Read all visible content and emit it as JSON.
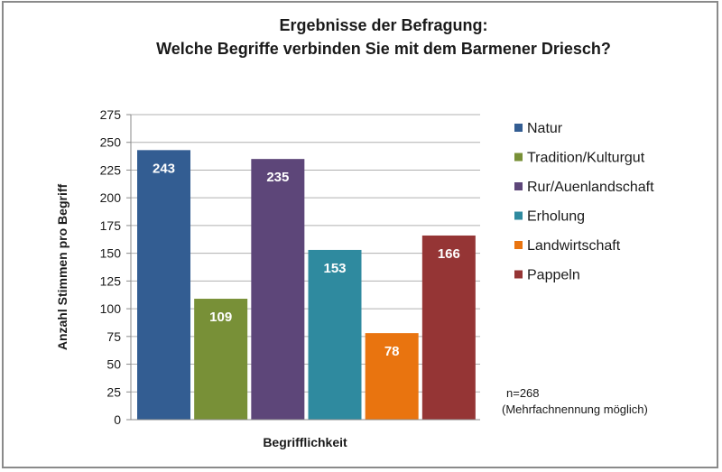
{
  "chart_data": {
    "type": "bar",
    "title": "Ergebnisse der Befragung:",
    "subtitle": "Welche Begriffe verbinden Sie mit dem Barmener Driesch?",
    "xlabel": "Begrifflichkeit",
    "ylabel": "Anzahl Stimmen pro Begriff",
    "ylim": [
      0,
      275
    ],
    "yticks": [
      0,
      25,
      50,
      75,
      100,
      125,
      150,
      175,
      200,
      225,
      250,
      275
    ],
    "grid": true,
    "legend": "right",
    "categories": [
      "Natur",
      "Tradition/Kulturgut",
      "Rur/Auenlandschaft",
      "Erholung",
      "Landwirtschaft",
      "Pappeln"
    ],
    "values": [
      243,
      109,
      235,
      153,
      78,
      166
    ],
    "colors": [
      "#335d92",
      "#789037",
      "#5d4679",
      "#2f8a9f",
      "#e9740f",
      "#953535"
    ],
    "annotation": [
      "n=268",
      "(Mehrfachnennung möglich)"
    ]
  }
}
